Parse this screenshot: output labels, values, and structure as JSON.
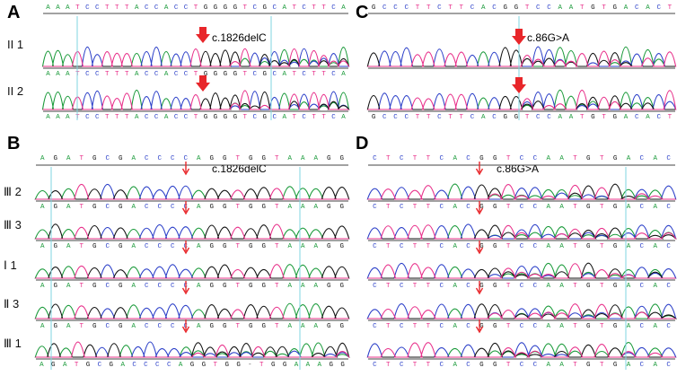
{
  "panel_letters": {
    "a": "A",
    "b": "B",
    "c": "C",
    "d": "D"
  },
  "panel_a": {
    "seq_top": "AAATCCTTTACCACCTGGGGTCGCATCTTCA",
    "mutation": "c.1826delC",
    "rows": [
      {
        "label": "II 1",
        "seq": "AAATCCTTTACCACCTGGGGTCGCATCTTCA"
      },
      {
        "label": "II 2",
        "seq": "AAATCCTTTACCACCTGGGGTCGCATCTTCA"
      }
    ]
  },
  "panel_b": {
    "seq_top": "AGATGCGACCCCAGGTGGTAAAGG",
    "mutation": "c.1826delC",
    "rows": [
      {
        "label": "Ⅲ 2",
        "seq": "AGATGCGACCCCAGGTGGTAAAGG"
      },
      {
        "label": "Ⅲ 3",
        "seq": "AGATGCGACCCCAGGTGGTAAAGG"
      },
      {
        "label": "Ⅰ 1",
        "seq": "AGATGCGACCCCAGGTGGTAAAGG"
      },
      {
        "label": "Ⅱ 3",
        "seq": "AGATGCGACCCCAGGTGGTAAAGG"
      },
      {
        "label": "Ⅲ 1",
        "seq": "AGATGCGACCCCAGGTGG-TGGAAAGG"
      }
    ]
  },
  "panel_c": {
    "seq_top": "GCCCTTCTTCACGGTCCAATGTGACACT",
    "mutation": "c.86G>A",
    "rows": [
      {
        "label": "",
        "seq": "GCCCTTCTTCACGGTCCAATGTGACACT"
      },
      {
        "label": "",
        "seq": "GCCCTTCTTCACGGTCCAATGTGACACT"
      }
    ]
  },
  "panel_d": {
    "seq_top": "CTCTTCACGGTCCAATGTGACAC",
    "mutation": "c.86G>A",
    "rows": [
      {
        "label": "",
        "seq": "CTCTTCACGGTCCAATGTGACAC"
      },
      {
        "label": "",
        "seq": "CTCTTCACGGTCCAATGTGACAC"
      },
      {
        "label": "",
        "seq": "CTCTTCACGGTCCAATGTGACAC"
      },
      {
        "label": "",
        "seq": "CTCTTCACGGTCCAATGTGACAC"
      },
      {
        "label": "",
        "seq": "CTCTTCACGGTCCAATGTGACAC"
      }
    ]
  },
  "colors": {
    "A": "#1a9a3a",
    "C": "#2b3fc8",
    "G": "#111111",
    "T": "#e8308a",
    "arrow": "#e8262a",
    "guide": "#7fd6e0"
  }
}
